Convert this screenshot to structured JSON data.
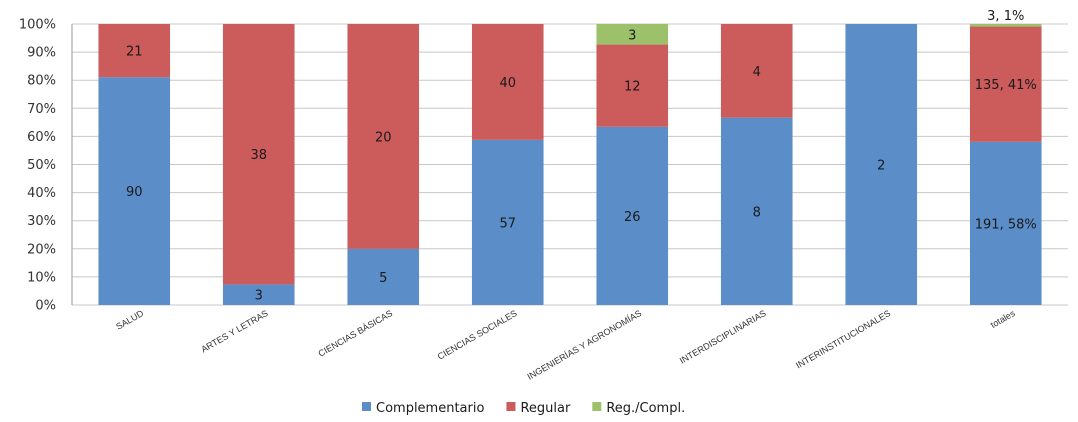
{
  "chart_data": {
    "type": "bar",
    "stacked": "percent",
    "title": "",
    "xlabel": "",
    "ylabel": "",
    "ylim": [
      0,
      100
    ],
    "y_ticks": [
      "0%",
      "10%",
      "20%",
      "30%",
      "40%",
      "50%",
      "60%",
      "70%",
      "80%",
      "90%",
      "100%"
    ],
    "grid": true,
    "legend_position": "bottom",
    "categories": [
      "SALUD",
      "ARTES Y LETRAS",
      "CIENCIAS BÁSICAS",
      "CIENCIAS SOCIALES",
      "INGENIERÍAS  Y AGRONOMÍAS",
      "INTERDISCIPLINARIAS",
      "INTERINSTITUCIONALES",
      "totales"
    ],
    "series": [
      {
        "name": "Complementario",
        "color": "#5b8ec8",
        "values": [
          90,
          3,
          5,
          57,
          26,
          8,
          2,
          191
        ],
        "labels": [
          "90",
          "3",
          "5",
          "57",
          "26",
          "8",
          "2",
          "191, 58%"
        ]
      },
      {
        "name": "Regular",
        "color": "#cc5b5b",
        "values": [
          21,
          38,
          20,
          40,
          12,
          4,
          0,
          135
        ],
        "labels": [
          "21",
          "38",
          "20",
          "40",
          "12",
          "4",
          "",
          "135, 41%"
        ]
      },
      {
        "name": "Reg./Compl.",
        "color": "#9dc06a",
        "values": [
          0,
          0,
          0,
          0,
          3,
          0,
          0,
          3
        ],
        "labels": [
          "",
          "",
          "",
          "",
          "3",
          "",
          "",
          "3, 1%"
        ]
      }
    ]
  }
}
